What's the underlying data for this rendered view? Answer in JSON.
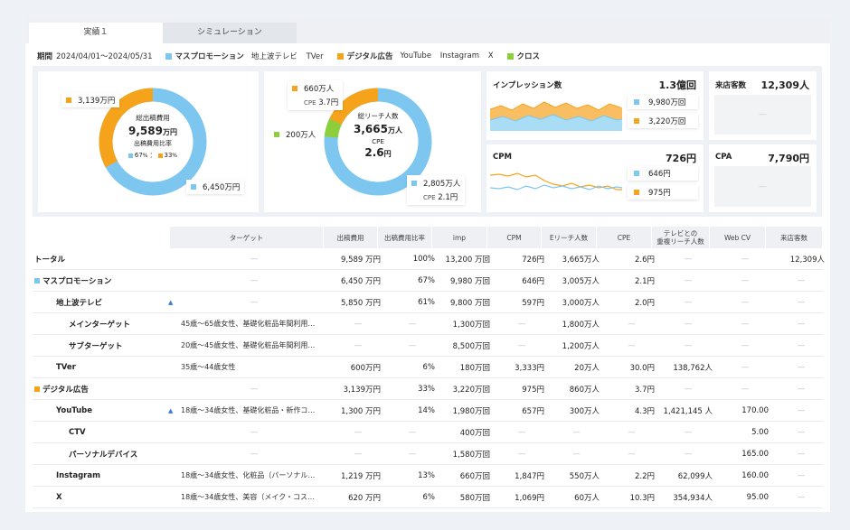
{
  "tabs": {
    "actual": "実績１",
    "simulation": "シミュレーション"
  },
  "filters": {
    "period_label": "期間",
    "period_value": "2024/04/01〜2024/05/31",
    "mass_label": "マスプロモーション",
    "mass_items": [
      "地上波テレビ",
      "TVer"
    ],
    "digital_label": "デジタル広告",
    "digital_items": [
      "YouTube",
      "Instagram",
      "X"
    ],
    "cross_label": "クロス"
  },
  "colors": {
    "mass": "#7dc6ef",
    "digital": "#f5a31a",
    "cross": "#8ccf3b",
    "arrow": "#3a7bd5"
  },
  "donut1": {
    "center_title": "総出稿費用",
    "center_value": "9,589",
    "center_unit": "万円",
    "ratio_label": "出稿費用比率",
    "ratio_mass": "67",
    "ratio_digital": "33",
    "ratio_unit": "%",
    "ratio_sep": "：",
    "tag_digital": "3,139万円",
    "tag_mass": "6,450万円",
    "share": {
      "mass": 0.67,
      "digital": 0.33
    }
  },
  "donut2": {
    "center_title": "総リーチ人数",
    "center_value": "3,665",
    "center_unit": "万人",
    "cpe_label": "CPE",
    "cpe_value": "2.6",
    "cpe_unit": "円",
    "tag_digital_reach": "660万人",
    "tag_digital_cpe_label": "CPE",
    "tag_digital_cpe": "3.7円",
    "tag_cross": "200万人",
    "tag_mass_reach": "2,805万人",
    "tag_mass_cpe_label": "CPE",
    "tag_mass_cpe": "2.1円",
    "share": {
      "mass": 0.765,
      "cross": 0.055,
      "digital": 0.18
    }
  },
  "impressions": {
    "title": "インプレッション数",
    "value": "1.3億回",
    "mass": "9,980万回",
    "digital": "3,220万回"
  },
  "cpm": {
    "title": "CPM",
    "value": "726円",
    "mass": "646円",
    "digital": "975円"
  },
  "visits": {
    "title": "来店客数",
    "value": "12,309人",
    "empty": "—"
  },
  "cpa": {
    "title": "CPA",
    "value": "7,790円",
    "empty": "—"
  },
  "table": {
    "headers": [
      "ターゲット",
      "出稿費用",
      "出稿費用比率",
      "imp",
      "CPM",
      "Eリーチ人数",
      "CPE",
      "テレビとの重複リーチ人数",
      "Web CV",
      "来店客数"
    ],
    "header_tv_line1": "テレビとの",
    "header_tv_line2": "重複リーチ人数",
    "rows": [
      {
        "name": "トータル",
        "level": 0,
        "marker": "",
        "arrow": "",
        "cells": [
          "—",
          "9,589 万円",
          "100%",
          "13,200 万回",
          "726円",
          "3,665万人",
          "2.6円",
          "—",
          "—",
          "12,309人"
        ]
      },
      {
        "name": "マスプロモーション",
        "level": 0,
        "marker": "mass",
        "arrow": "",
        "cells": [
          "—",
          "6,450 万円",
          "67%",
          "9,980 万回",
          "646円",
          "3,005万人",
          "2.1円",
          "—",
          "—",
          "—"
        ]
      },
      {
        "name": "地上波テレビ",
        "level": 1,
        "marker": "",
        "arrow": "▲",
        "cells": [
          "—",
          "5,850 万円",
          "61%",
          "9,800 万回",
          "597円",
          "3,000万人",
          "2.0円",
          "—",
          "—",
          "—"
        ]
      },
      {
        "name": "メインターゲット",
        "level": 2,
        "marker": "",
        "arrow": "",
        "cells": [
          "45歳〜65歳女性、基礎化粧品年間利用…",
          "—",
          "—",
          "1,300万回",
          "—",
          "1,800万人",
          "—",
          "—",
          "—",
          "—"
        ]
      },
      {
        "name": "サブターゲット",
        "level": 2,
        "marker": "",
        "arrow": "",
        "cells": [
          "20歳〜45歳女性、基礎化粧品年間利用…",
          "—",
          "—",
          "8,500万回",
          "—",
          "1,200万人",
          "—",
          "—",
          "—",
          "—"
        ]
      },
      {
        "name": "TVer",
        "level": 1,
        "marker": "",
        "arrow": "",
        "cells": [
          "35歳〜44歳女性",
          "600万円",
          "6%",
          "180万回",
          "3,333円",
          "20万人",
          "30.0円",
          "138,762人",
          "—",
          "—"
        ]
      },
      {
        "name": "デジタル広告",
        "level": 0,
        "marker": "digital",
        "arrow": "",
        "cells": [
          "—",
          "3,139万円",
          "33%",
          "3,220万回",
          "975円",
          "860万人",
          "3.7円",
          "—",
          "—",
          "—"
        ]
      },
      {
        "name": "YouTube",
        "level": 1,
        "marker": "",
        "arrow": "▲",
        "cells": [
          "18歳〜34歳女性、基礎化粧品・新作コ…",
          "1,300 万円",
          "14%",
          "1,980万回",
          "657円",
          "300万人",
          "4.3円",
          "1,421,145 人",
          "170.00",
          "—"
        ]
      },
      {
        "name": "CTV",
        "level": 2,
        "marker": "",
        "arrow": "",
        "cells": [
          "—",
          "—",
          "—",
          "400万回",
          "—",
          "—",
          "—",
          "—",
          "5.00",
          "—"
        ]
      },
      {
        "name": "パーソナルデバイス",
        "level": 2,
        "marker": "",
        "arrow": "",
        "cells": [
          "—",
          "—",
          "—",
          "1,580万回",
          "—",
          "—",
          "—",
          "—",
          "165.00",
          "—"
        ]
      },
      {
        "name": "Instagram",
        "level": 1,
        "marker": "",
        "arrow": "",
        "cells": [
          "18歳〜34歳女性、化粧品（パーソナル…",
          "1,219 万円",
          "13%",
          "660万回",
          "1,847円",
          "550万人",
          "2.2円",
          "62,099人",
          "160.00",
          "—"
        ]
      },
      {
        "name": "X",
        "level": 1,
        "marker": "",
        "arrow": "",
        "cells": [
          "18歳〜34歳女性、美容（メイク・コス…",
          "620 万円",
          "6%",
          "580万回",
          "1,069円",
          "60万人",
          "10.3円",
          "354,934人",
          "95.00",
          "—"
        ]
      }
    ]
  }
}
